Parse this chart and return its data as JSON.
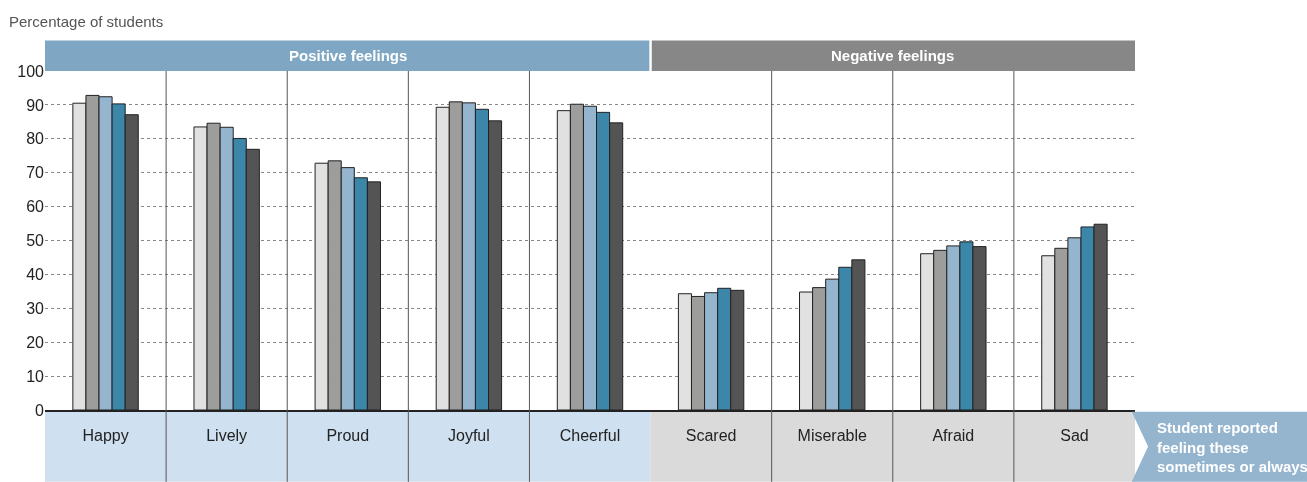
{
  "chart_data": {
    "type": "bar",
    "ylabel": "Percentage of students",
    "categories": [
      "Happy",
      "Lively",
      "Proud",
      "Joyful",
      "Cheerful",
      "Scared",
      "Miserable",
      "Afraid",
      "Sad"
    ],
    "series": [
      {
        "color": "#e1e1e1",
        "values": [
          90.5,
          83.5,
          72.8,
          89.3,
          88.3,
          34.3,
          34.8,
          46.1,
          45.5
        ]
      },
      {
        "color": "#9d9d9c",
        "values": [
          92.8,
          84.6,
          73.5,
          90.9,
          90.2,
          33.5,
          36.1,
          47.1,
          47.7
        ]
      },
      {
        "color": "#95b5cf",
        "values": [
          92.4,
          83.4,
          71.5,
          90.6,
          89.6,
          34.6,
          38.6,
          48.4,
          50.8
        ]
      },
      {
        "color": "#3b86a9",
        "values": [
          90.3,
          80.1,
          68.5,
          88.7,
          87.8,
          35.9,
          42.1,
          49.6,
          54.0
        ]
      },
      {
        "color": "#545454",
        "values": [
          87.1,
          76.9,
          67.3,
          85.3,
          84.7,
          35.3,
          44.3,
          48.2,
          54.8
        ]
      }
    ],
    "ylim": [
      0,
      100
    ],
    "yticks": [
      0,
      10,
      20,
      30,
      40,
      50,
      60,
      70,
      80,
      90,
      100
    ],
    "grid": "y",
    "annotations": [
      "Positive feelings",
      "Negative feelings",
      "Student reported feeling these sometimes or always"
    ]
  }
}
